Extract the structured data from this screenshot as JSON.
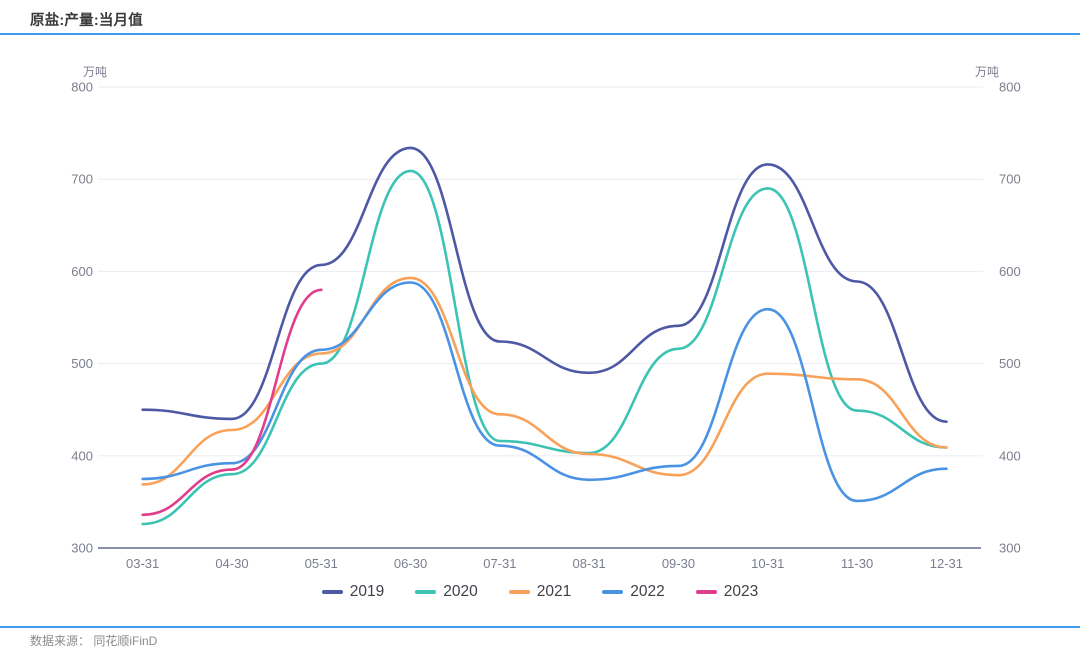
{
  "header": {
    "title": "原盐:产量:当月值"
  },
  "footer": {
    "source_label": "数据来源： 同花顺iFinD"
  },
  "colors": {
    "accent_divider": "#3e9cef",
    "grid_line": "#ebedf5",
    "axis_line": "#8a8eac",
    "tick_label": "#7b7e8e"
  },
  "chart_data": {
    "type": "line",
    "title": "原盐:产量:当月值",
    "unit_label_left": "万吨",
    "unit_label_right": "万吨",
    "xlabel": "",
    "ylabel": "万吨",
    "ylim": [
      300,
      800
    ],
    "yticks": [
      300,
      400,
      500,
      600,
      700,
      800
    ],
    "grid": true,
    "smooth": true,
    "legend_position": "bottom",
    "categories": [
      "03-31",
      "04-30",
      "05-31",
      "06-30",
      "07-31",
      "08-31",
      "09-30",
      "10-31",
      "11-30",
      "12-31"
    ],
    "series": [
      {
        "name": "2019",
        "color": "#4d59a5",
        "values": [
          450,
          440,
          607,
          734,
          524,
          490,
          541,
          716,
          589,
          437
        ]
      },
      {
        "name": "2020",
        "color": "#3cc3b4",
        "values": [
          326,
          380,
          500,
          709,
          416,
          403,
          516,
          690,
          449,
          409
        ]
      },
      {
        "name": "2021",
        "color": "#f9a158",
        "values": [
          369,
          428,
          511,
          593,
          445,
          402,
          379,
          489,
          483,
          409
        ]
      },
      {
        "name": "2022",
        "color": "#4a93e4",
        "values": [
          375,
          392,
          515,
          588,
          411,
          374,
          389,
          559,
          351,
          386
        ]
      },
      {
        "name": "2023",
        "color": "#e03e8c",
        "values": [
          336,
          385,
          580,
          null,
          null,
          null,
          null,
          null,
          null,
          null
        ]
      }
    ]
  }
}
